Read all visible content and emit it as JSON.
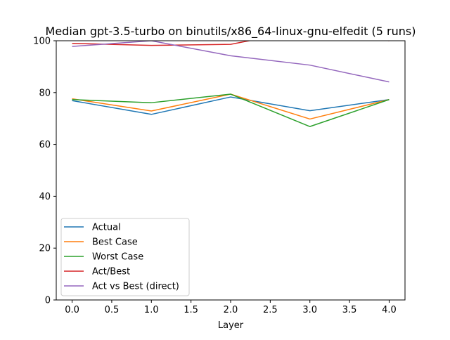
{
  "chart_data": {
    "type": "line",
    "title": "Median gpt-3.5-turbo on binutils/x86_64-linux-gnu-elfedit (5 runs)",
    "xlabel": "Layer",
    "ylabel": "",
    "xlim": [
      -0.2,
      4.2
    ],
    "ylim": [
      0,
      100
    ],
    "x_ticks": [
      0.0,
      0.5,
      1.0,
      1.5,
      2.0,
      2.5,
      3.0,
      3.5,
      4.0
    ],
    "x_tick_labels": [
      "0.0",
      "0.5",
      "1.0",
      "1.5",
      "2.0",
      "2.5",
      "3.0",
      "3.5",
      "4.0"
    ],
    "y_ticks": [
      0,
      20,
      40,
      60,
      80,
      100
    ],
    "y_tick_labels": [
      "0",
      "20",
      "40",
      "60",
      "80",
      "100"
    ],
    "grid": false,
    "legend_position": "lower-left",
    "x": [
      0,
      1,
      2,
      3,
      4
    ],
    "series": [
      {
        "name": "Actual",
        "color": "#1f77b4",
        "values": [
          76.9,
          71.6,
          78.3,
          73.0,
          77.3
        ]
      },
      {
        "name": "Best Case",
        "color": "#ff7f0e",
        "values": [
          77.6,
          72.9,
          79.4,
          69.8,
          77.3
        ]
      },
      {
        "name": "Worst Case",
        "color": "#2ca02c",
        "values": [
          77.3,
          76.1,
          79.4,
          66.9,
          77.3
        ]
      },
      {
        "name": "Act/Best",
        "color": "#d62728",
        "values": [
          99.0,
          98.2,
          98.6,
          104.6,
          100.0
        ]
      },
      {
        "name": "Act vs Best (direct)",
        "color": "#9467bd",
        "values": [
          97.8,
          100.0,
          94.2,
          90.6,
          84.1
        ]
      }
    ]
  }
}
